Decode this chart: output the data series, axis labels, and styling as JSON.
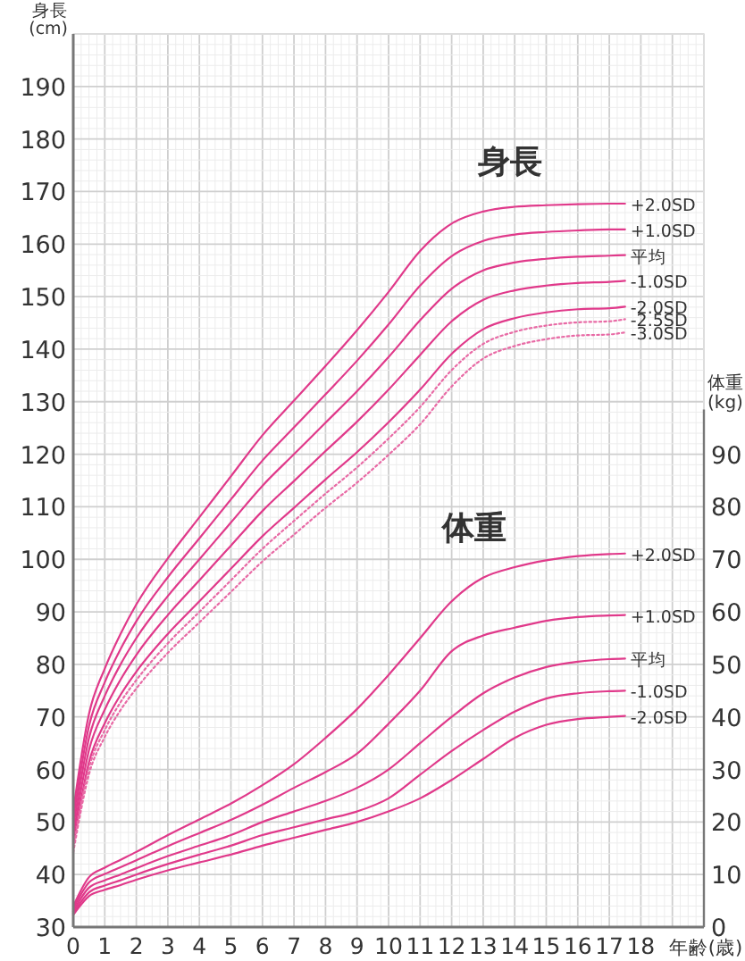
{
  "chart_data": {
    "type": "line",
    "ylabel": "身長(cm)",
    "y2label": "体重(kg)",
    "xlabel": "年齢(歳)",
    "annotations": [
      "身長",
      "体重"
    ],
    "x": [
      0,
      0.5,
      1,
      1.5,
      2,
      3,
      4,
      5,
      6,
      7,
      8,
      9,
      10,
      11,
      12,
      13,
      14,
      15,
      16,
      17,
      17.5
    ],
    "xlim": [
      0,
      20
    ],
    "xticks": [
      0,
      1,
      2,
      3,
      4,
      5,
      6,
      7,
      8,
      9,
      10,
      11,
      12,
      13,
      14,
      15,
      16,
      17,
      18
    ],
    "ylim": [
      30,
      200
    ],
    "yticks": [
      30,
      40,
      50,
      60,
      70,
      80,
      90,
      100,
      110,
      120,
      130,
      140,
      150,
      160,
      170,
      180,
      190
    ],
    "y2lim": [
      0,
      170
    ],
    "y2ticks": [
      0,
      10,
      20,
      30,
      40,
      50,
      60,
      70,
      80,
      90
    ],
    "grid": true,
    "marker": "none",
    "series": [
      {
        "name": "+2.0SD",
        "color": "#e0398a",
        "values": [
          52.2,
          70.6,
          79.2,
          85.8,
          91.4,
          100.2,
          108,
          115.8,
          123.6,
          130.2,
          136.8,
          143.6,
          150.9,
          158.7,
          163.9,
          166.2,
          167.1,
          167.4,
          167.6,
          167.7,
          167.7
        ]
      },
      {
        "name": "+1.0SD",
        "color": "#e0398a",
        "values": [
          50.6,
          68.3,
          76.6,
          82.9,
          88.2,
          96.6,
          104,
          111.4,
          118.8,
          125.1,
          131.4,
          137.8,
          144.7,
          152.1,
          157.7,
          160.6,
          161.8,
          162.3,
          162.6,
          162.8,
          162.8
        ]
      },
      {
        "name": "平均",
        "color": "#e0398a",
        "values": [
          49,
          66,
          74,
          80,
          85,
          93,
          100,
          107,
          114,
          120,
          126,
          132,
          138.5,
          145.5,
          151.5,
          155,
          156.5,
          157.2,
          157.6,
          157.8,
          157.9
        ]
      },
      {
        "name": "-1.0SD",
        "color": "#e0398a",
        "values": [
          47.4,
          63.7,
          71.4,
          77.1,
          81.8,
          89.4,
          96,
          102.6,
          109.2,
          114.9,
          120.6,
          126.2,
          132.3,
          138.9,
          145.3,
          149.4,
          151.2,
          152.1,
          152.6,
          152.8,
          153
        ]
      },
      {
        "name": "-2.0SD",
        "color": "#e0398a",
        "values": [
          45.8,
          61.4,
          68.8,
          74.2,
          78.6,
          85.8,
          92,
          98.2,
          104.4,
          109.8,
          115.2,
          120.4,
          126.1,
          132.3,
          139.1,
          143.8,
          145.9,
          147,
          147.6,
          147.8,
          148.1
        ]
      },
      {
        "name": "-2.5SD",
        "color": "#e86aa5",
        "line_style": "dotted",
        "values": [
          45,
          60.3,
          67.5,
          72.8,
          77,
          84,
          90,
          96,
          102,
          107.3,
          112.5,
          117.5,
          123,
          129,
          136,
          141,
          143.3,
          144.5,
          145.1,
          145.3,
          145.7
        ]
      },
      {
        "name": "-3.0SD",
        "color": "#e86aa5",
        "line_style": "dotted",
        "values": [
          44.2,
          59.1,
          66.2,
          71.3,
          75.4,
          82.2,
          88,
          93.8,
          99.6,
          104.7,
          109.8,
          114.6,
          119.9,
          125.7,
          132.9,
          138.2,
          140.6,
          141.9,
          142.6,
          142.8,
          143.2
        ]
      },
      {
        "name": "+2.0SD",
        "color": "#e0398a",
        "axis": "y2",
        "values": [
          4,
          9.5,
          11.3,
          12.8,
          14.3,
          17.5,
          20.5,
          23.5,
          27,
          31,
          36,
          41.5,
          48,
          55,
          62,
          66.5,
          68.5,
          69.8,
          70.6,
          71,
          71.1
        ]
      },
      {
        "name": "+1.0SD",
        "color": "#e0398a",
        "axis": "y2",
        "values": [
          3.5,
          8.5,
          10.1,
          11.4,
          12.7,
          15.4,
          17.9,
          20.4,
          23.3,
          26.5,
          29.5,
          33,
          38.7,
          45,
          52.5,
          55.5,
          57,
          58.3,
          59,
          59.3,
          59.4
        ]
      },
      {
        "name": "平均",
        "color": "#e0398a",
        "axis": "y2",
        "values": [
          3,
          7.5,
          8.9,
          10,
          11.2,
          13.5,
          15.5,
          17.5,
          20,
          22,
          24,
          26.5,
          30,
          35,
          40,
          44.5,
          47.5,
          49.5,
          50.5,
          51,
          51.1
        ]
      },
      {
        "name": "-1.0SD",
        "color": "#e0398a",
        "axis": "y2",
        "values": [
          2.6,
          6.6,
          7.9,
          8.9,
          10,
          12,
          13.8,
          15.5,
          17.5,
          19,
          20.5,
          22,
          24.5,
          29,
          33.5,
          37.5,
          41,
          43.5,
          44.5,
          44.9,
          45
        ]
      },
      {
        "name": "-2.0SD",
        "color": "#e0398a",
        "axis": "y2",
        "values": [
          2.3,
          5.9,
          7.1,
          8,
          9,
          10.8,
          12.3,
          13.8,
          15.5,
          17,
          18.5,
          20,
          22,
          24.5,
          28,
          32,
          36,
          38.5,
          39.6,
          40,
          40.2
        ]
      }
    ]
  }
}
